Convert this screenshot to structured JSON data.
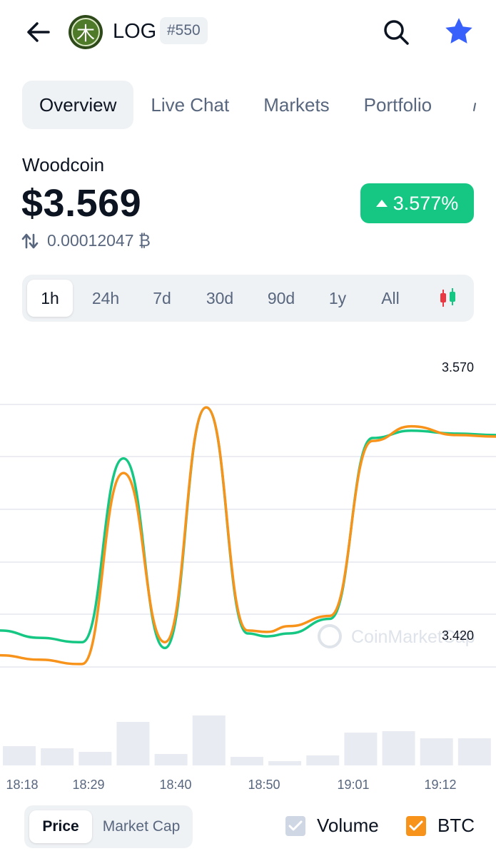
{
  "header": {
    "back_icon": "arrow-left-icon",
    "logo_glyph": "木",
    "symbol": "LOG",
    "rank": "#550",
    "search_icon": "search-icon",
    "star_icon": "star-icon",
    "star_color": "#3861fb"
  },
  "tabs": [
    {
      "label": "Overview",
      "active": true
    },
    {
      "label": "Live Chat",
      "active": false
    },
    {
      "label": "Markets",
      "active": false
    },
    {
      "label": "Portfolio",
      "active": false
    }
  ],
  "coin": {
    "name": "Woodcoin",
    "price": "$3.569",
    "change": "3.577%",
    "change_direction": "up",
    "change_color": "#16c784",
    "btc_price": "0.00012047 ₿"
  },
  "timeframes": [
    {
      "label": "1h",
      "active": true
    },
    {
      "label": "24h",
      "active": false
    },
    {
      "label": "7d",
      "active": false
    },
    {
      "label": "30d",
      "active": false
    },
    {
      "label": "90d",
      "active": false
    },
    {
      "label": "1y",
      "active": false
    },
    {
      "label": "All",
      "active": false
    }
  ],
  "watermark": "CoinMarketCap",
  "chart_data": {
    "type": "line",
    "y_tick_labels": [
      "3.570",
      "3.420"
    ],
    "x_tick_labels": [
      "18:18",
      "18:29",
      "18:40",
      "18:50",
      "19:01",
      "19:12"
    ],
    "grid": true,
    "series": [
      {
        "color": "#16c784",
        "values": [
          3.42,
          3.415,
          3.412,
          3.412,
          3.538,
          3.408,
          3.573,
          3.418,
          3.416,
          3.418,
          3.428,
          3.552,
          3.557,
          3.555,
          3.554
        ]
      },
      {
        "color": "#f7931a",
        "values": [
          3.403,
          3.4,
          3.397,
          3.397,
          3.528,
          3.412,
          3.573,
          3.42,
          3.419,
          3.423,
          3.43,
          3.55,
          3.56,
          3.554,
          3.553
        ]
      }
    ],
    "volume": [
      0.27,
      0.24,
      0.19,
      0.61,
      0.16,
      0.7,
      0.12,
      0.06,
      0.14,
      0.46,
      0.48,
      0.38,
      0.38
    ]
  },
  "bottom": {
    "modes": [
      {
        "label": "Price",
        "active": true
      },
      {
        "label": "Market Cap",
        "active": false
      }
    ],
    "volume_label": "Volume",
    "volume_checked": true,
    "volume_check_color": "#cfd6e4",
    "btc_label": "BTC",
    "btc_checked": true,
    "btc_check_color": "#f7931a"
  }
}
